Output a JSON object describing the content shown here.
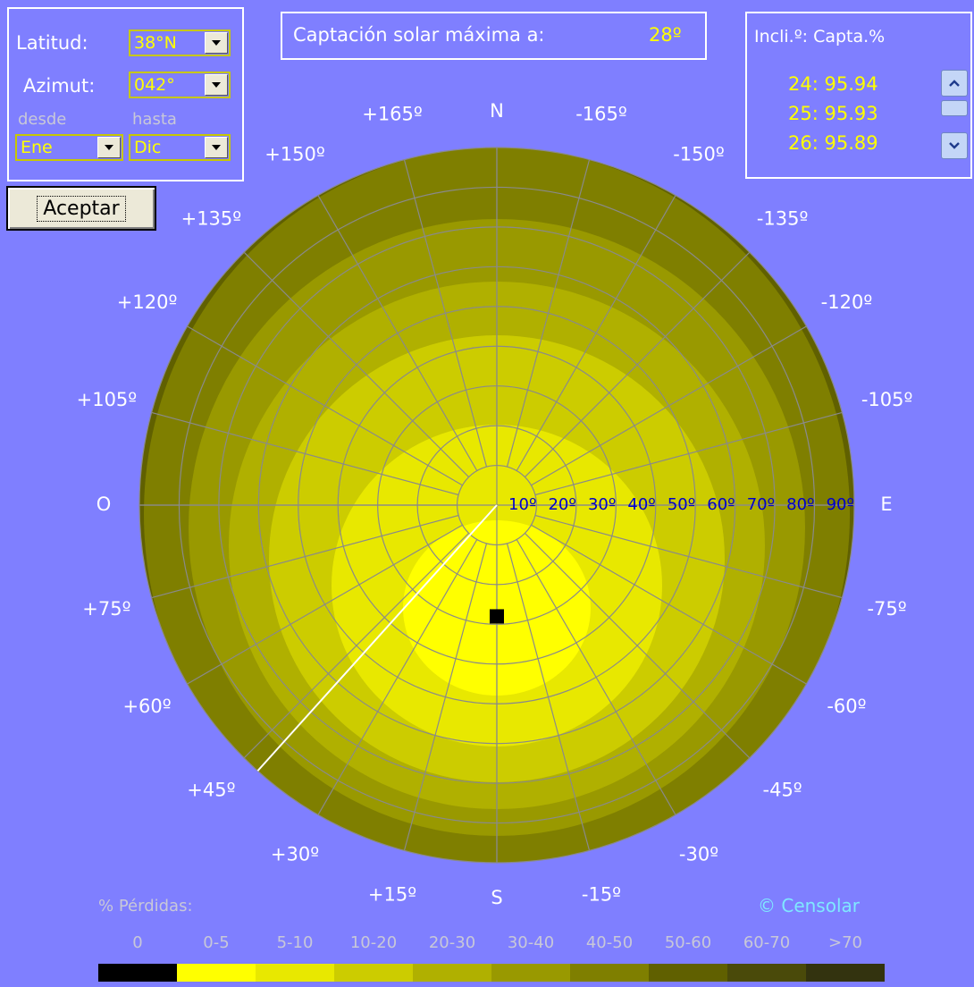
{
  "form": {
    "latitude_label": "Latitud:",
    "latitude_value": "38°N",
    "azimuth_label": "Azimut:",
    "azimuth_value": "042°",
    "from_label": "desde",
    "to_label": "hasta",
    "from_value": "Ene",
    "to_value": "Dic",
    "accept_label": "Aceptar"
  },
  "header": {
    "title_prefix": "Captación solar máxima a:",
    "max_angle": "28º"
  },
  "results": {
    "header": "Incli.º: Capta.%",
    "rows": [
      "24: 95.94",
      "25: 95.93",
      "26: 95.89"
    ]
  },
  "chart_data": {
    "type": "polar-heatmap",
    "title": "",
    "orientation_labels": {
      "top": "N",
      "bottom": "S",
      "left": "O",
      "right": "E"
    },
    "azimuth_labels": [
      "+165º",
      "-165º",
      "+150º",
      "-150º",
      "+135º",
      "-135º",
      "+120º",
      "-120º",
      "+105º",
      "-105º",
      "+75º",
      "-75º",
      "+60º",
      "-60º",
      "+45º",
      "-45º",
      "+30º",
      "-30º",
      "+15º",
      "-15º"
    ],
    "tilt_labels": [
      "10º",
      "20º",
      "30º",
      "40º",
      "50º",
      "60º",
      "70º",
      "80º",
      "90º"
    ],
    "marker": {
      "azimuth_deg": 0,
      "tilt_deg": 28
    },
    "azimuth_line_deg": 42,
    "legend_title": "% Pérdidas:",
    "legend": [
      {
        "label": "0",
        "color": "#000000"
      },
      {
        "label": "0-5",
        "color": "#ffff00"
      },
      {
        "label": "5-10",
        "color": "#e8e800"
      },
      {
        "label": "10-20",
        "color": "#cccc00"
      },
      {
        "label": "20-30",
        "color": "#b0b000"
      },
      {
        "label": "30-40",
        "color": "#999900"
      },
      {
        "label": "40-50",
        "color": "#7f7f00"
      },
      {
        "label": "50-60",
        "color": "#606000"
      },
      {
        "label": "60-70",
        "color": "#4a4a0a"
      },
      {
        "label": ">70",
        "color": "#33330f"
      }
    ]
  },
  "copyright": "© Censolar",
  "colors": {
    "background": "#7f7fff",
    "accent": "#ffff00",
    "tilt_labels": "#0000cc"
  }
}
